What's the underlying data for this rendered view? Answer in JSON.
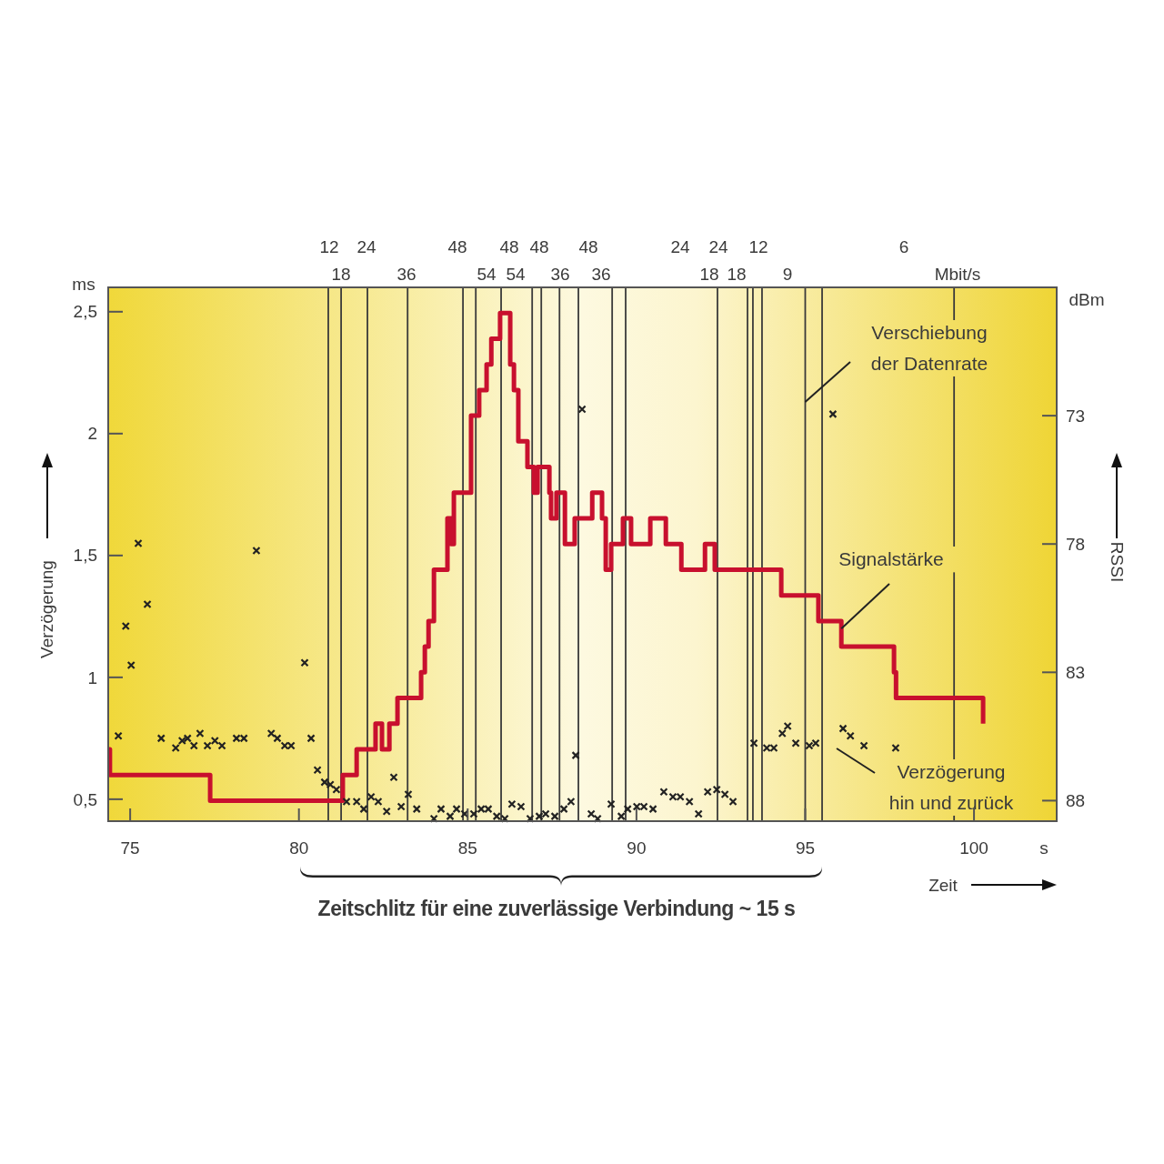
{
  "chart_data": {
    "type": "scatter",
    "xlabel": "Zeit",
    "ylabel": "Verzögerung",
    "y2label": "RSSI",
    "xlim": [
      74.35,
      102.45
    ],
    "xticks": [
      75,
      80,
      85,
      90,
      95,
      100
    ],
    "ylim": [
      0.41,
      2.6
    ],
    "yticks": [
      {
        "value": 0.5,
        "label": "0,5"
      },
      1,
      {
        "value": 1.5,
        "label": "1,5"
      },
      2,
      {
        "value": 2.5,
        "label": "2,5"
      }
    ],
    "y2lim": [
      88.8,
      68
    ],
    "y2ticks": [
      73,
      78,
      83,
      88
    ],
    "grid": false,
    "ref_lines": [
      {
        "axis": "x",
        "value": 80.87,
        "color": "#3a3a3a"
      },
      {
        "axis": "x",
        "value": 81.25,
        "color": "#3a3a3a"
      },
      {
        "axis": "x",
        "value": 82.03,
        "color": "#3a3a3a"
      },
      {
        "axis": "x",
        "value": 83.22,
        "color": "#3a3a3a"
      },
      {
        "axis": "x",
        "value": 84.86,
        "color": "#3a3a3a"
      },
      {
        "axis": "x",
        "value": 85.24,
        "color": "#3a3a3a"
      },
      {
        "axis": "x",
        "value": 85.99,
        "color": "#3a3a3a"
      },
      {
        "axis": "x",
        "value": 86.91,
        "color": "#3a3a3a"
      },
      {
        "axis": "x",
        "value": 87.18,
        "color": "#3a3a3a"
      },
      {
        "axis": "x",
        "value": 87.72,
        "color": "#3a3a3a"
      },
      {
        "axis": "x",
        "value": 88.28,
        "color": "#3a3a3a"
      },
      {
        "axis": "x",
        "value": 89.28,
        "color": "#3a3a3a"
      },
      {
        "axis": "x",
        "value": 89.68,
        "color": "#3a3a3a"
      },
      {
        "axis": "x",
        "value": 92.4,
        "color": "#3a3a3a"
      },
      {
        "axis": "x",
        "value": 93.29,
        "color": "#3a3a3a"
      },
      {
        "axis": "x",
        "value": 93.45,
        "color": "#3a3a3a"
      },
      {
        "axis": "x",
        "value": 93.72,
        "color": "#3a3a3a"
      },
      {
        "axis": "x",
        "value": 95.0,
        "color": "#3a3a3a"
      },
      {
        "axis": "x",
        "value": 95.5,
        "color": "#3a3a3a"
      },
      {
        "axis": "x",
        "value": 99.41,
        "color": "#3a3a3a"
      }
    ],
    "annotations": [
      {
        "text": "Verschiebung\nder Datenrate",
        "x": 95.0,
        "y": 2.13
      },
      {
        "text": "Signalstärke",
        "x": 96.07,
        "y": 1.2
      },
      "Verzögerung\nhin und zurück",
      "Zeitschlitz für eine zuverlässige Verbindung ~ 15 s",
      "ms",
      "dBm",
      "s",
      "Mbit/s",
      "12",
      "18",
      "24",
      "36",
      "48",
      "54",
      "48",
      "54",
      "48",
      "36",
      "48",
      "36",
      "24",
      "18",
      "24",
      "18",
      "12",
      "9",
      "6"
    ],
    "series": [
      {
        "type": "step",
        "axis": "y2",
        "color": "#c8102e",
        "line_style": "solid",
        "x": [
          74.35,
          74.4,
          77.37,
          81.3,
          81.71,
          82.27,
          82.46,
          82.68,
          82.92,
          83.62,
          83.73,
          83.84,
          84.0,
          84.4,
          84.51,
          84.59,
          85.1,
          85.34,
          85.56,
          85.7,
          85.96,
          86.26,
          86.37,
          86.5,
          86.77,
          86.96,
          87.07,
          87.42,
          87.47,
          87.63,
          87.88,
          88.17,
          88.69,
          88.98,
          89.09,
          89.25,
          89.6,
          89.84,
          90.41,
          90.87,
          91.33,
          92.03,
          92.32,
          94.29,
          95.39,
          96.07,
          97.63,
          97.69,
          100.27
        ],
        "values": [
          86,
          87,
          88,
          87,
          86,
          85,
          86,
          85,
          84,
          83,
          82,
          81,
          79,
          77,
          78,
          76,
          73,
          72,
          71,
          70,
          69,
          71,
          72,
          74,
          75,
          76,
          75,
          76,
          77,
          76,
          78,
          77,
          76,
          77,
          79,
          78,
          77,
          78,
          77,
          78,
          79,
          78,
          79,
          80,
          81,
          82,
          83,
          84,
          85
        ]
      },
      {
        "color": "#222222",
        "marker": "cross",
        "x": [
          74.65,
          74.87,
          75.03,
          75.24,
          75.51,
          75.92,
          76.35,
          76.54,
          76.7,
          76.89,
          77.07,
          77.29,
          77.51,
          77.72,
          78.15,
          78.37,
          78.74,
          79.18,
          79.36,
          79.58,
          79.77,
          80.17,
          80.36,
          80.55,
          80.76,
          80.93,
          81.11,
          81.41,
          81.71,
          81.92,
          82.14,
          82.35,
          82.6,
          82.81,
          83.03,
          83.24,
          83.49,
          84.0,
          84.21,
          84.48,
          84.67,
          84.91,
          85.18,
          85.4,
          85.61,
          85.86,
          86.1,
          86.31,
          86.58,
          86.85,
          87.12,
          87.31,
          87.58,
          87.85,
          88.06,
          88.2,
          88.39,
          88.66,
          88.85,
          89.25,
          89.55,
          89.74,
          90.01,
          90.22,
          90.49,
          90.81,
          91.08,
          91.3,
          91.57,
          91.84,
          92.11,
          92.38,
          92.62,
          92.86,
          93.48,
          93.86,
          94.07,
          94.32,
          94.48,
          94.72,
          95.12,
          95.31,
          95.82,
          96.12,
          96.34,
          96.74,
          97.68
        ],
        "values": [
          0.76,
          1.21,
          1.05,
          1.55,
          1.3,
          0.75,
          0.71,
          0.74,
          0.75,
          0.72,
          0.77,
          0.72,
          0.74,
          0.72,
          0.75,
          0.75,
          1.52,
          0.77,
          0.75,
          0.72,
          0.72,
          1.06,
          0.75,
          0.62,
          0.57,
          0.56,
          0.54,
          0.49,
          0.49,
          0.46,
          0.51,
          0.49,
          0.45,
          0.59,
          0.47,
          0.52,
          0.46,
          0.42,
          0.46,
          0.43,
          0.46,
          0.44,
          0.44,
          0.46,
          0.46,
          0.43,
          0.42,
          0.48,
          0.47,
          0.42,
          0.43,
          0.44,
          0.43,
          0.46,
          0.49,
          0.68,
          2.1,
          0.44,
          0.42,
          0.48,
          0.43,
          0.46,
          0.47,
          0.47,
          0.46,
          0.53,
          0.51,
          0.51,
          0.49,
          0.44,
          0.53,
          0.54,
          0.52,
          0.49,
          0.73,
          0.71,
          0.71,
          0.77,
          0.8,
          0.73,
          0.72,
          0.73,
          2.08,
          0.79,
          0.76,
          0.72,
          0.71
        ]
      }
    ]
  }
}
